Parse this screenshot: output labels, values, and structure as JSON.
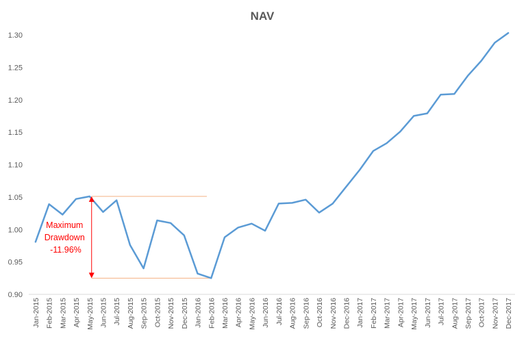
{
  "chart_data": {
    "type": "line",
    "title": "NAV",
    "ylim": [
      0.9,
      1.3
    ],
    "yticks": [
      "0.90",
      "0.95",
      "1.00",
      "1.05",
      "1.10",
      "1.15",
      "1.20",
      "1.25",
      "1.30"
    ],
    "grid": false,
    "legend": "none",
    "categories": [
      "Jan-2015",
      "Feb-2015",
      "Mar-2015",
      "Apr-2015",
      "May-2015",
      "Jun-2015",
      "Jul-2015",
      "Aug-2015",
      "Sep-2015",
      "Oct-2015",
      "Nov-2015",
      "Dec-2015",
      "Jan-2016",
      "Feb-2016",
      "Mar-2016",
      "Apr-2016",
      "May-2016",
      "Jun-2016",
      "Jul-2016",
      "Aug-2016",
      "Sep-2016",
      "Oct-2016",
      "Nov-2016",
      "Dec-2016",
      "Jan-2017",
      "Feb-2017",
      "Mar-2017",
      "Apr-2017",
      "May-2017",
      "Jun-2017",
      "Jul-2017",
      "Aug-2017",
      "Sep-2017",
      "Oct-2017",
      "Nov-2017",
      "Dec-2017"
    ],
    "series": [
      {
        "color": "#5B9BD5",
        "values": [
          0.981,
          1.039,
          1.023,
          1.047,
          1.051,
          1.027,
          1.045,
          0.976,
          0.94,
          1.014,
          1.01,
          0.991,
          0.932,
          0.925,
          0.988,
          1.003,
          1.009,
          0.998,
          1.04,
          1.041,
          1.046,
          1.026,
          1.04,
          1.066,
          1.092,
          1.121,
          1.133,
          1.151,
          1.175,
          1.179,
          1.208,
          1.209,
          1.237,
          1.26,
          1.288,
          1.303
        ]
      }
    ],
    "annotation": {
      "lines": [
        "Maximum",
        "Drawdown",
        "-11.96%"
      ],
      "color": "#FF0000",
      "peak_value": 1.051,
      "trough_value": 0.925,
      "arrow_category": "May-2015",
      "guide_color": "#F4B183"
    }
  }
}
